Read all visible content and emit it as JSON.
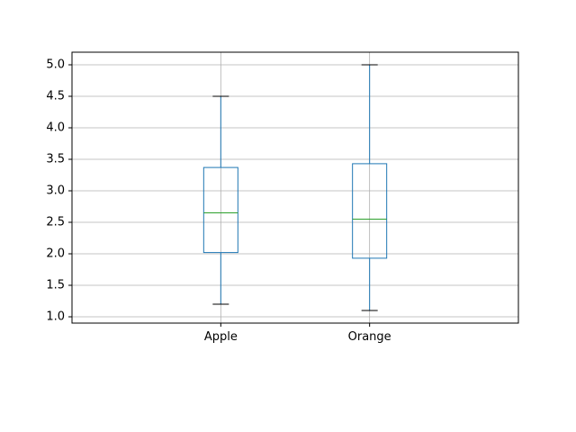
{
  "chart_data": {
    "type": "box",
    "categories": [
      "Apple",
      "Orange"
    ],
    "boxes": [
      {
        "category": "Apple",
        "whisker_low": 1.2,
        "q1": 2.02,
        "median": 2.65,
        "q3": 3.37,
        "whisker_high": 4.5
      },
      {
        "category": "Orange",
        "whisker_low": 1.1,
        "q1": 1.93,
        "median": 2.55,
        "q3": 3.43,
        "whisker_high": 5.0
      }
    ],
    "ylim": [
      0.9,
      5.2
    ],
    "yticks": [
      "1.0",
      "1.5",
      "2.0",
      "2.5",
      "3.0",
      "3.5",
      "4.0",
      "4.5",
      "5.0"
    ],
    "grid": true,
    "colors": {
      "box": "#1f77b4",
      "median": "#2ca02c",
      "whisker_cap": "#000000",
      "grid": "#b0b0b0",
      "axes": "#000000"
    }
  }
}
